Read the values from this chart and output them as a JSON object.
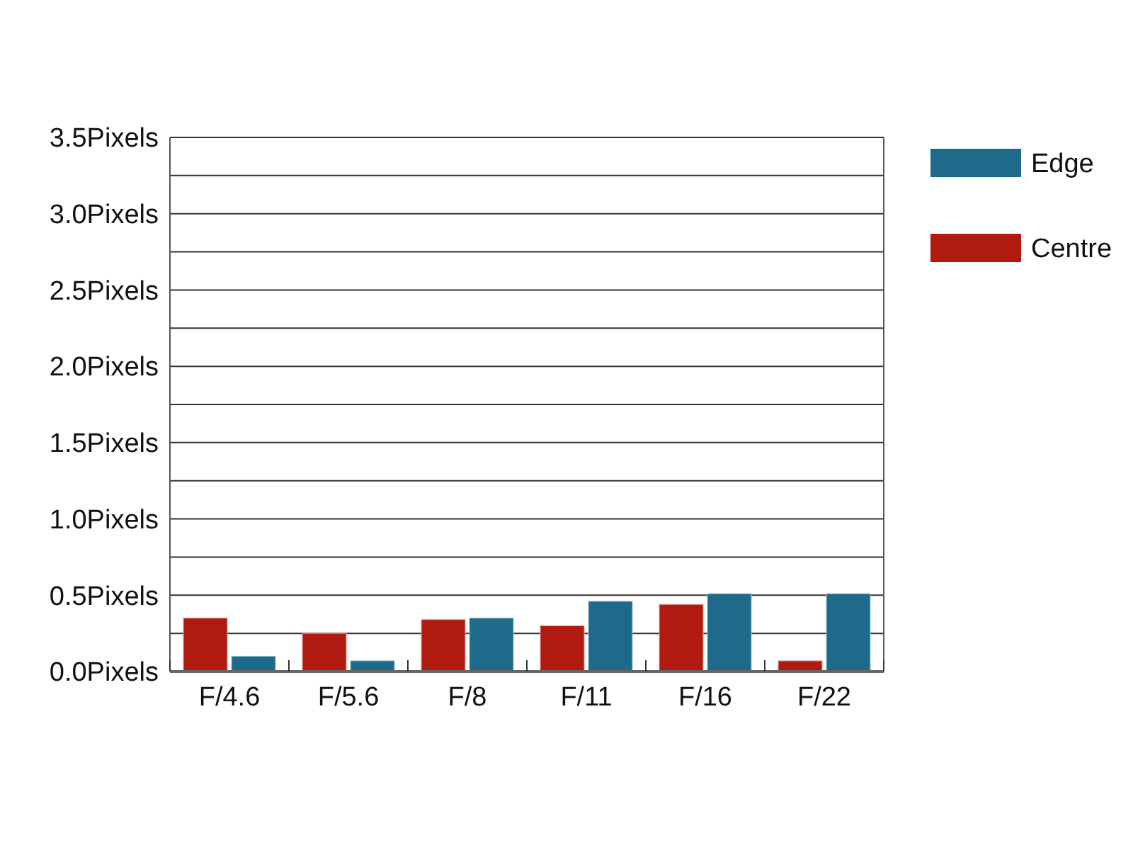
{
  "chart_data": {
    "type": "bar",
    "categories": [
      "F/4.6",
      "F/5.6",
      "F/8",
      "F/11",
      "F/16",
      "F/22"
    ],
    "series": [
      {
        "name": "Centre",
        "color": "#b01a10",
        "values": [
          0.35,
          0.25,
          0.34,
          0.3,
          0.44,
          0.07
        ]
      },
      {
        "name": "Edge",
        "color": "#1e6a8a",
        "values": [
          0.1,
          0.07,
          0.35,
          0.46,
          0.51,
          0.51
        ]
      }
    ],
    "ylim": [
      0,
      3.5
    ],
    "yticks": [
      {
        "value": 0,
        "label": "0.0Pixels"
      },
      {
        "value": 0.25,
        "label": null
      },
      {
        "value": 0.5,
        "label": "0.5Pixels"
      },
      {
        "value": 0.75,
        "label": null
      },
      {
        "value": 1,
        "label": "1.0Pixels"
      },
      {
        "value": 1.25,
        "label": null
      },
      {
        "value": 1.5,
        "label": "1.5Pixels"
      },
      {
        "value": 1.75,
        "label": null
      },
      {
        "value": 2,
        "label": "2.0Pixels"
      },
      {
        "value": 2.25,
        "label": null
      },
      {
        "value": 2.5,
        "label": "2.5Pixels"
      },
      {
        "value": 2.75,
        "label": null
      },
      {
        "value": 3,
        "label": "3.0Pixels"
      },
      {
        "value": 3.25,
        "label": null
      },
      {
        "value": 3.5,
        "label": "3.5Pixels"
      }
    ],
    "grid": true,
    "legend": "top right"
  }
}
